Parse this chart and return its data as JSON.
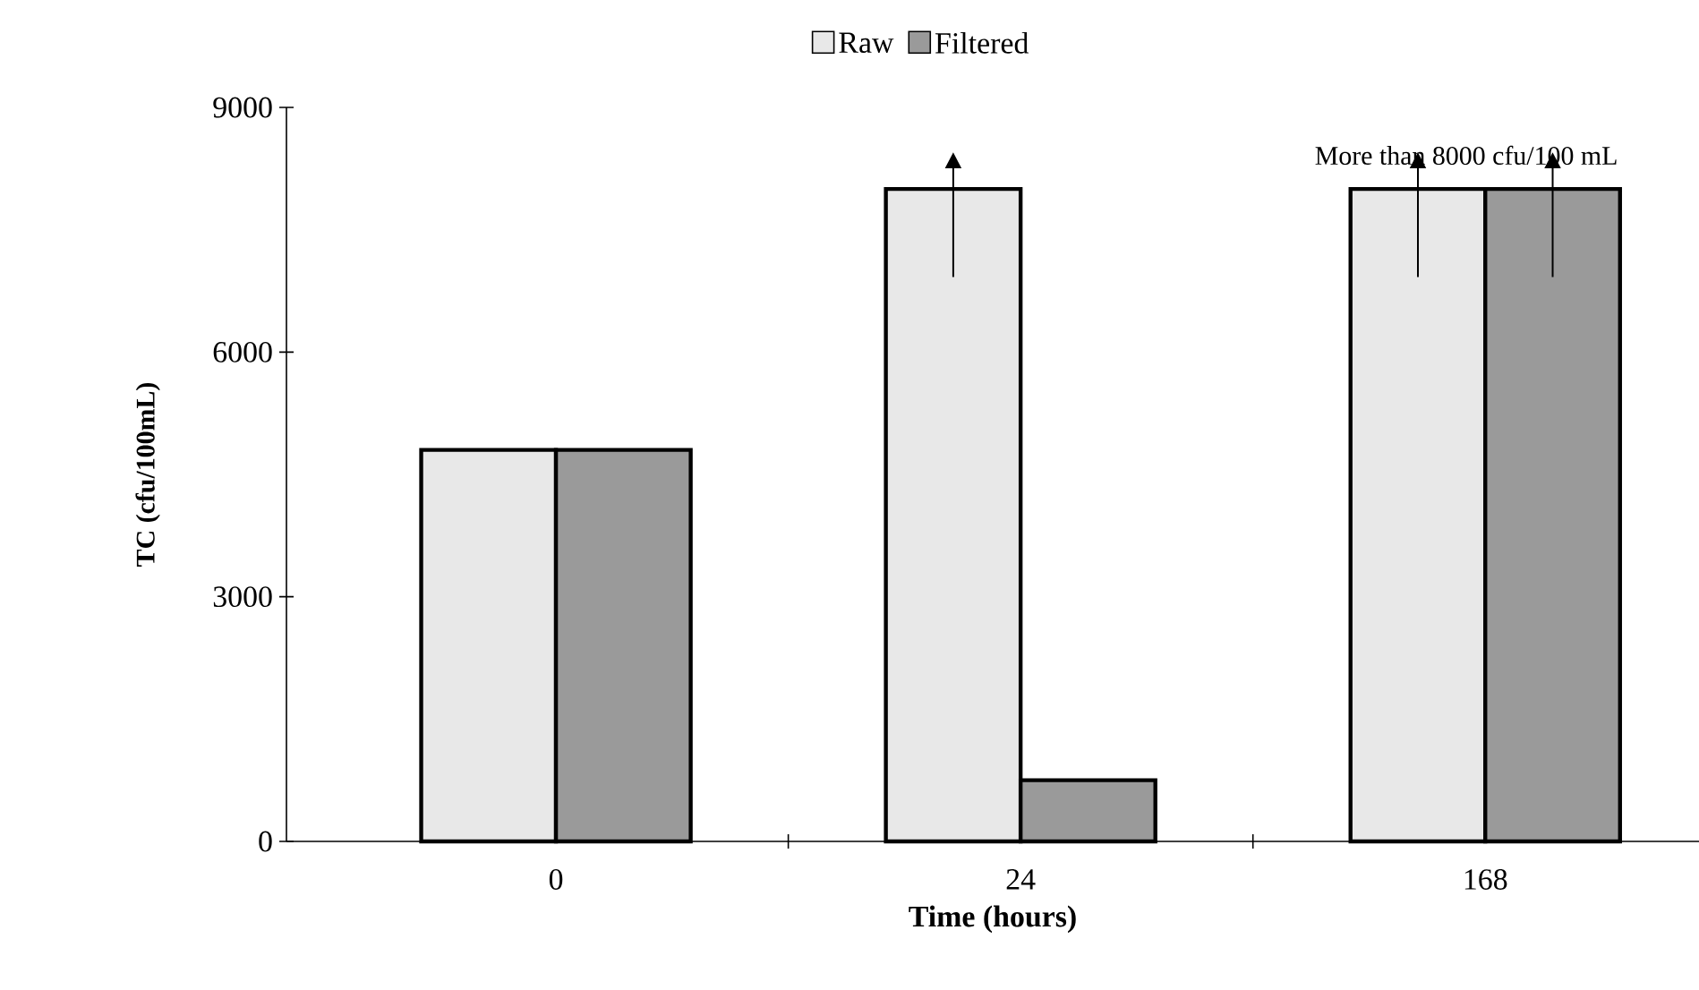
{
  "chart_data": {
    "type": "bar",
    "xlabel": "Time (hours)",
    "ylabel": "TC (cfu/100mL)",
    "categories": [
      "0",
      "24",
      "168"
    ],
    "series": [
      {
        "name": "Raw",
        "color": "#e8e8e8",
        "values": [
          4800,
          8000,
          8000
        ]
      },
      {
        "name": "Filtered",
        "color": "#9a9a9a",
        "values": [
          4800,
          750,
          8000
        ]
      }
    ],
    "ylim": [
      0,
      9000
    ],
    "yticks": [
      0,
      3000,
      6000,
      9000
    ],
    "legend": "top",
    "annotations": [
      {
        "text": "More than 8000 cfu/100 mL",
        "x": "168",
        "y": 8000
      }
    ]
  }
}
